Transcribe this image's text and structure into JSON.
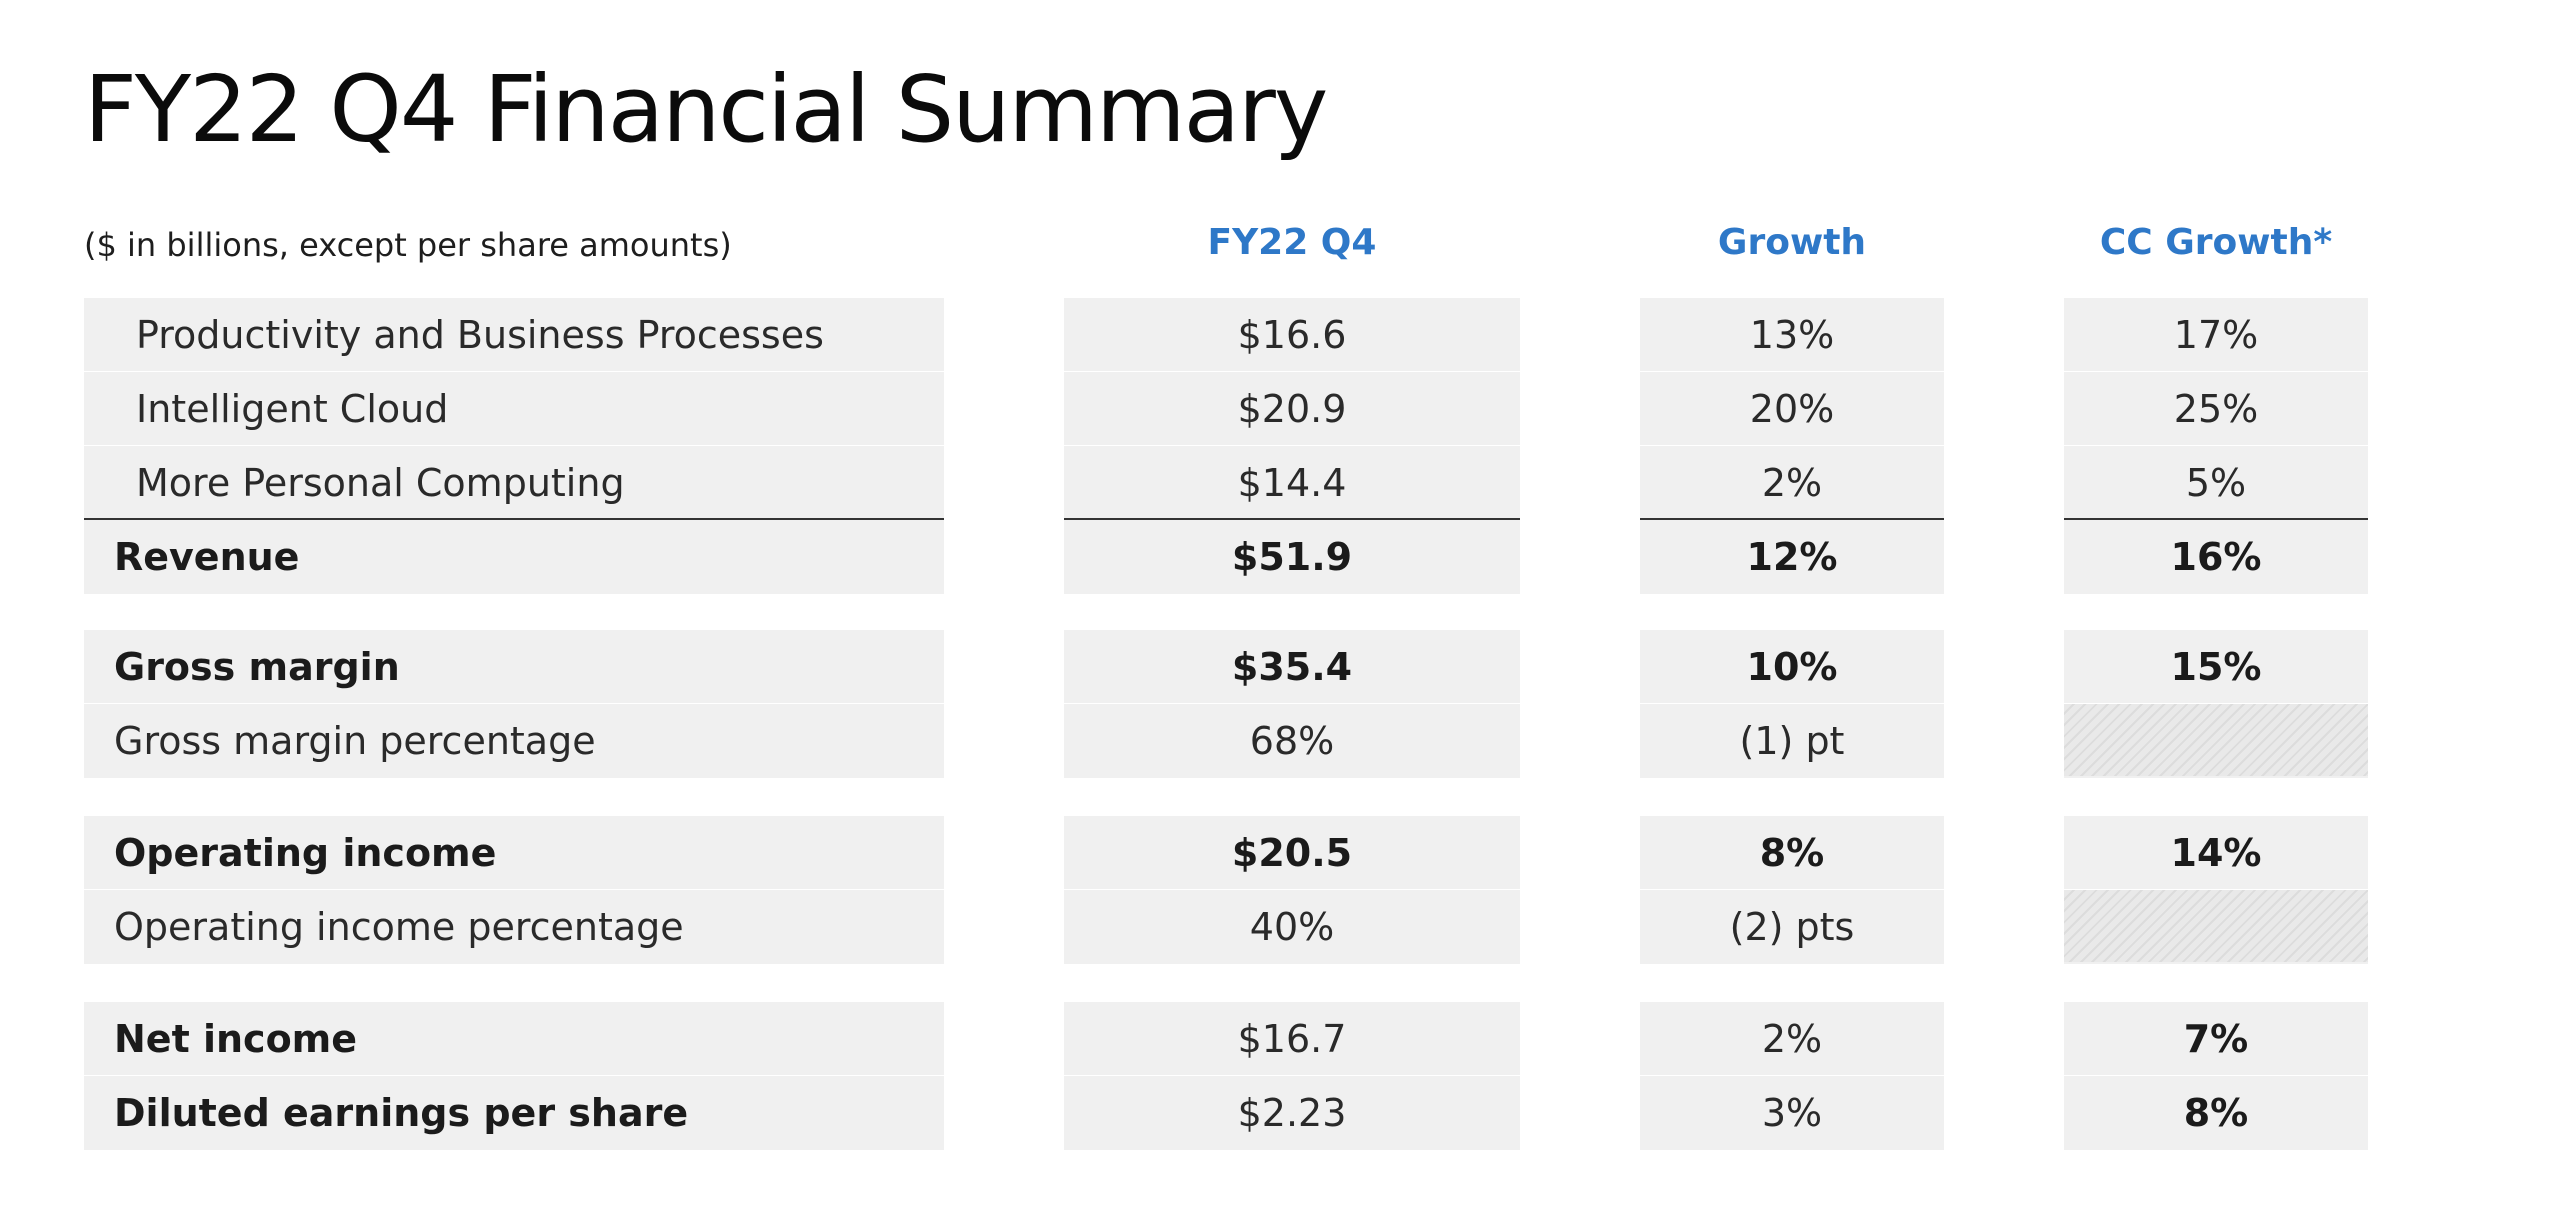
{
  "title": "FY22 Q4 Financial Summary",
  "subtitle": "($ in billions, except per share amounts)",
  "columns": [
    "FY22 Q4",
    "Growth",
    "CC Growth*"
  ],
  "rows": [
    {
      "label": "Productivity and Business Processes",
      "value": "$16.6",
      "growth": "13%",
      "cc_growth": "17%",
      "bold": false,
      "indent": true
    },
    {
      "label": "Intelligent Cloud",
      "value": "$20.9",
      "growth": "20%",
      "cc_growth": "25%",
      "bold": false,
      "indent": true
    },
    {
      "label": "More Personal Computing",
      "value": "$14.4",
      "growth": "2%",
      "cc_growth": "5%",
      "bold": false,
      "indent": true
    },
    {
      "label": "Revenue",
      "value": "$51.9",
      "growth": "12%",
      "cc_growth": "16%",
      "bold": true,
      "value_bold": true,
      "growth_bold": true,
      "cc_bold": true
    },
    {
      "label": "Gross margin",
      "value": "$35.4",
      "growth": "10%",
      "cc_growth": "15%",
      "bold": true,
      "value_bold": true,
      "growth_bold": true,
      "cc_bold": true
    },
    {
      "label": "Gross margin percentage",
      "value": "68%",
      "growth": "(1) pt",
      "cc_growth": null,
      "bold": false
    },
    {
      "label": "Operating income",
      "value": "$20.5",
      "growth": "8%",
      "cc_growth": "14%",
      "bold": true,
      "value_bold": true,
      "growth_bold": true,
      "cc_bold": true
    },
    {
      "label": "Operating income percentage",
      "value": "40%",
      "growth": "(2) pts",
      "cc_growth": null,
      "bold": false
    },
    {
      "label": "Net income",
      "value": "$16.7",
      "growth": "2%",
      "cc_growth": "7%",
      "bold": true,
      "value_bold": false,
      "growth_bold": false,
      "cc_bold": true
    },
    {
      "label": "Diluted earnings per share",
      "value": "$2.23",
      "growth": "3%",
      "cc_growth": "8%",
      "bold": true,
      "value_bold": false,
      "growth_bold": false,
      "cc_bold": true
    }
  ]
}
